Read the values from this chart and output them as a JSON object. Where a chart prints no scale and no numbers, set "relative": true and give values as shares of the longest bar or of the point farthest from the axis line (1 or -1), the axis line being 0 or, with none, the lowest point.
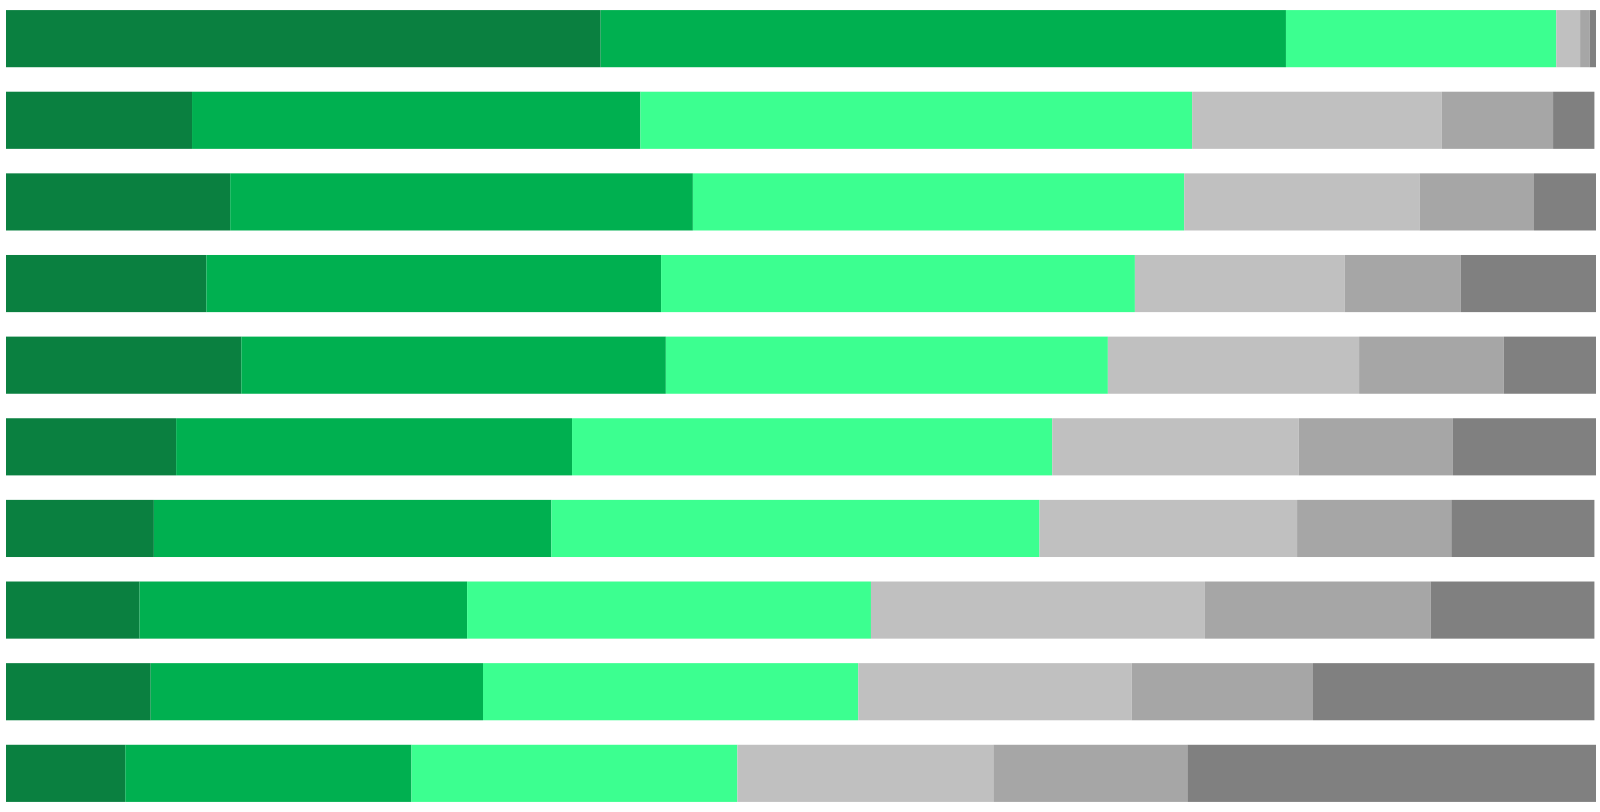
{
  "chart_data": {
    "type": "bar",
    "orientation": "horizontal",
    "stacked": true,
    "relative": true,
    "categories": [
      null,
      null,
      null,
      null,
      null,
      null,
      null,
      null,
      null,
      null
    ],
    "series": [
      {
        "color": "#0a8040",
        "values": [
          0.374,
          0.117,
          0.141,
          0.126,
          0.148,
          0.107,
          0.093,
          0.084,
          0.091,
          0.075
        ]
      },
      {
        "color": "#00b050",
        "values": [
          0.431,
          0.282,
          0.291,
          0.286,
          0.267,
          0.249,
          0.25,
          0.206,
          0.209,
          0.18
        ]
      },
      {
        "color": "#3cff90",
        "values": [
          0.17,
          0.347,
          0.309,
          0.298,
          0.278,
          0.302,
          0.307,
          0.254,
          0.236,
          0.205
        ]
      },
      {
        "color": "#c0c0c0",
        "values": [
          0.015,
          0.157,
          0.148,
          0.132,
          0.158,
          0.155,
          0.162,
          0.21,
          0.172,
          0.161
        ]
      },
      {
        "color": "#a6a6a6",
        "values": [
          0.006,
          0.07,
          0.072,
          0.073,
          0.091,
          0.097,
          0.097,
          0.142,
          0.114,
          0.122
        ]
      },
      {
        "color": "#808080",
        "values": [
          0.004,
          0.026,
          0.039,
          0.085,
          0.058,
          0.09,
          0.09,
          0.103,
          0.177,
          0.257
        ]
      }
    ]
  }
}
